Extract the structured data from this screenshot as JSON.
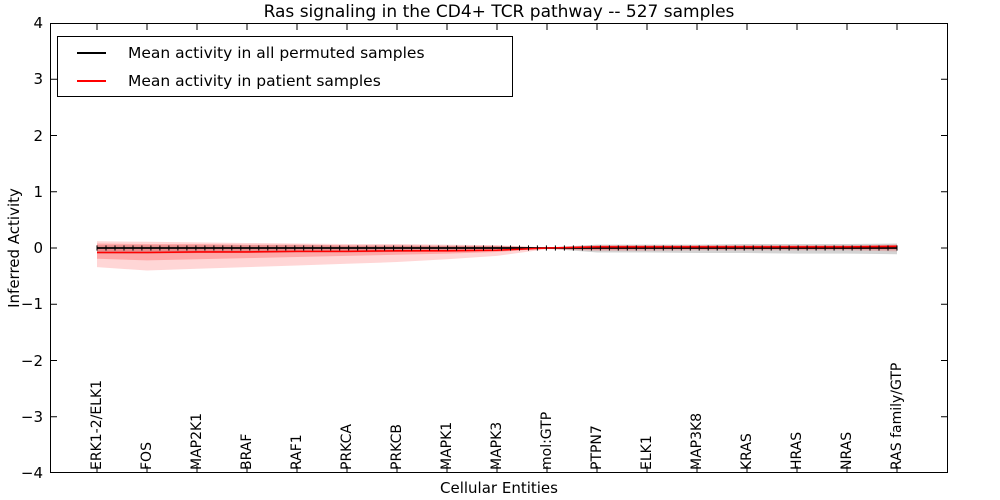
{
  "figure": {
    "title": "Ras signaling in the CD4+ TCR pathway -- 527 samples",
    "xlabel": "Cellular Entities",
    "ylabel": "Inferred Activity"
  },
  "legend": {
    "entries": [
      {
        "label": "Mean activity in all permuted samples",
        "color": "#000000"
      },
      {
        "label": "Mean activity in patient samples",
        "color": "#ff0000"
      }
    ]
  },
  "chart_data": {
    "type": "line",
    "title": "Ras signaling in the CD4+ TCR pathway -- 527 samples",
    "xlabel": "Cellular Entities",
    "ylabel": "Inferred Activity",
    "ylim": [
      -4,
      4
    ],
    "yticks": [
      4,
      3,
      2,
      1,
      0,
      -1,
      -2,
      -3,
      -4
    ],
    "ytick_labels": [
      "4",
      "3",
      "2",
      "1",
      "0",
      "−1",
      "−2",
      "−3",
      "−4"
    ],
    "grid": false,
    "legend_position": "upper left",
    "categories": [
      "ERK1-2/ELK1",
      "FOS",
      "MAP2K1",
      "BRAF",
      "RAF1",
      "PRKCA",
      "PRKCB",
      "MAPK1",
      "MAPK3",
      "mol:GTP",
      "PTPN7",
      "ELK1",
      "MAP3K8",
      "KRAS",
      "HRAS",
      "NRAS",
      "RAS family/GTP"
    ],
    "series": [
      {
        "name": "Mean activity in all permuted samples",
        "color": "#000000",
        "values": [
          0.0,
          0.0,
          0.0,
          0.0,
          0.0,
          0.0,
          0.0,
          0.0,
          0.0,
          0.0,
          0.0,
          0.0,
          0.0,
          0.0,
          0.0,
          0.0,
          0.0
        ]
      },
      {
        "name": "Mean activity in patient samples",
        "color": "#ff0000",
        "values": [
          -0.08,
          -0.08,
          -0.07,
          -0.07,
          -0.06,
          -0.06,
          -0.05,
          -0.05,
          -0.04,
          0.0,
          0.02,
          0.02,
          0.02,
          0.02,
          0.02,
          0.02,
          0.03
        ]
      }
    ],
    "bands": [
      {
        "name": "permuted-samples-std-band",
        "color": "rgba(110,110,110,0.30)",
        "upper": [
          0.05,
          0.05,
          0.05,
          0.05,
          0.05,
          0.04,
          0.04,
          0.04,
          0.03,
          0.01,
          0.06,
          0.06,
          0.06,
          0.07,
          0.07,
          0.07,
          0.08
        ],
        "lower": [
          -0.1,
          -0.1,
          -0.09,
          -0.09,
          -0.08,
          -0.08,
          -0.07,
          -0.06,
          -0.05,
          -0.01,
          -0.08,
          -0.08,
          -0.09,
          -0.09,
          -0.1,
          -0.1,
          -0.11
        ]
      },
      {
        "name": "patient-samples-std-outer-band",
        "color": "rgba(255,30,30,0.18)",
        "upper": [
          0.12,
          0.11,
          0.1,
          0.09,
          0.08,
          0.07,
          0.07,
          0.06,
          0.05,
          0.01,
          0.05,
          0.05,
          0.05,
          0.05,
          0.05,
          0.05,
          0.06
        ],
        "lower": [
          -0.34,
          -0.4,
          -0.37,
          -0.34,
          -0.31,
          -0.28,
          -0.25,
          -0.2,
          -0.14,
          -0.02,
          -0.05,
          -0.05,
          -0.04,
          -0.04,
          -0.04,
          -0.04,
          -0.06
        ]
      },
      {
        "name": "patient-samples-std-inner-band",
        "color": "rgba(255,30,30,0.25)",
        "upper": [
          0.08,
          0.07,
          0.07,
          0.06,
          0.06,
          0.05,
          0.05,
          0.04,
          0.04,
          0.005,
          0.04,
          0.04,
          0.04,
          0.04,
          0.04,
          0.04,
          0.05
        ],
        "lower": [
          -0.19,
          -0.22,
          -0.2,
          -0.18,
          -0.16,
          -0.14,
          -0.12,
          -0.1,
          -0.07,
          -0.01,
          -0.03,
          -0.02,
          -0.02,
          -0.02,
          -0.02,
          -0.02,
          -0.03
        ]
      }
    ]
  }
}
